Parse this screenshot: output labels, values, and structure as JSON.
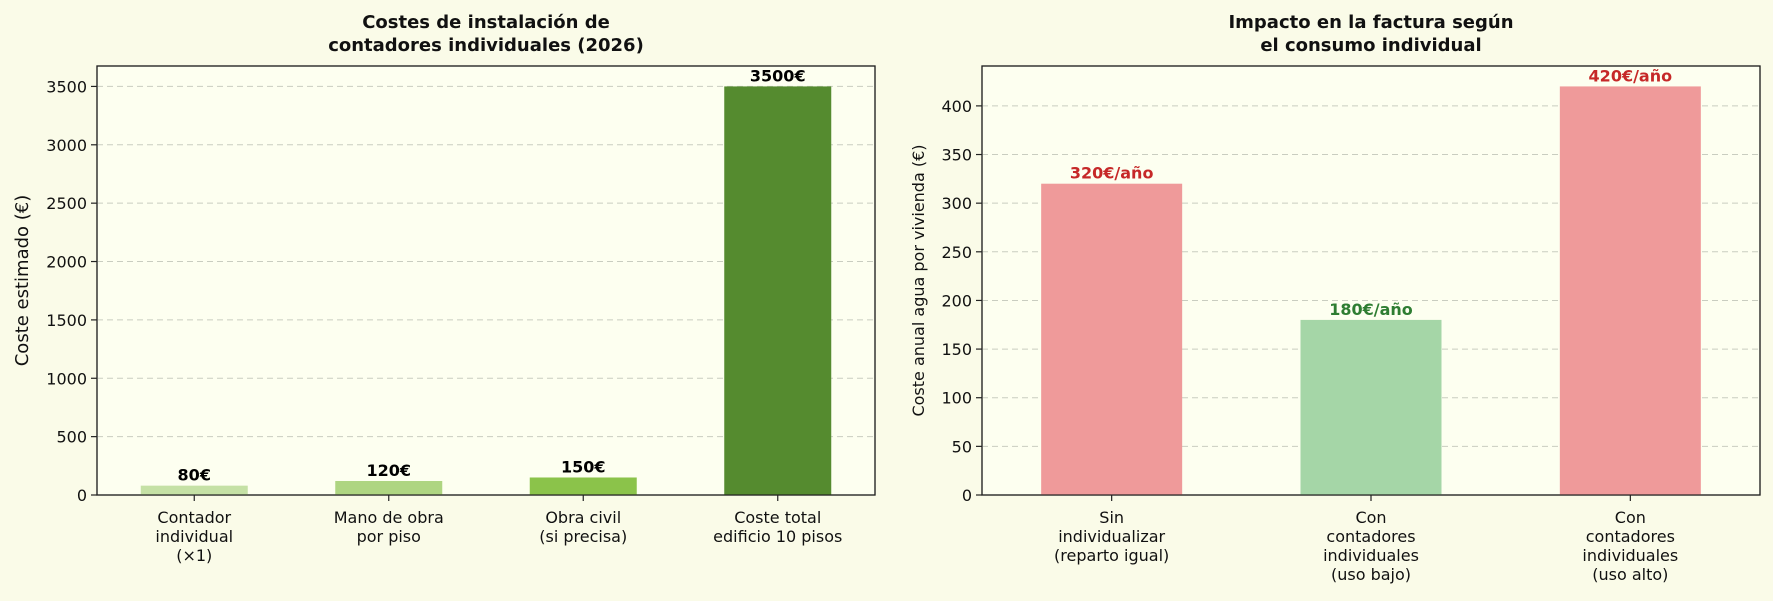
{
  "chart_data": [
    {
      "type": "bar",
      "title_lines": [
        "Costes de instalación de",
        "contadores individuales (2026)"
      ],
      "ylabel": "Coste estimado (€)",
      "xlabel": "",
      "ylim": [
        0,
        3675
      ],
      "yticks": [
        0,
        500,
        1000,
        1500,
        2000,
        2500,
        3000,
        3500
      ],
      "grid": true,
      "categories": [
        [
          "Contador",
          "individual",
          "(×1)"
        ],
        [
          "Mano de obra",
          "por piso"
        ],
        [
          "Obra civil",
          "(si precisa)"
        ],
        [
          "Coste total",
          "edificio 10 pisos"
        ]
      ],
      "values": [
        80,
        120,
        150,
        3500
      ],
      "labels": [
        "80€",
        "120€",
        "150€",
        "3500€"
      ],
      "colors": [
        "#c5e1a5",
        "#aed581",
        "#8bc34a",
        "#558b2f"
      ],
      "label_colors": [
        "#000000",
        "#000000",
        "#000000",
        "#000000"
      ]
    },
    {
      "type": "bar",
      "title_lines": [
        "Impacto en la factura según",
        "el consumo individual"
      ],
      "ylabel": "Coste anual agua por vivienda (€)",
      "xlabel": "",
      "ylim": [
        0,
        441
      ],
      "yticks": [
        0,
        50,
        100,
        150,
        200,
        250,
        300,
        350,
        400
      ],
      "grid": true,
      "categories": [
        [
          "Sin",
          "individualizar",
          "(reparto igual)"
        ],
        [
          "Con",
          "contadores",
          "individuales",
          "(uso bajo)"
        ],
        [
          "Con",
          "contadores",
          "individuales",
          "(uso alto)"
        ]
      ],
      "values": [
        320,
        180,
        420
      ],
      "labels": [
        "320€/año",
        "180€/año",
        "420€/año"
      ],
      "colors": [
        "#ef9a9a",
        "#a5d6a7",
        "#ef9a9a"
      ],
      "label_colors": [
        "#c62828",
        "#2e7d32",
        "#c62828"
      ]
    }
  ]
}
